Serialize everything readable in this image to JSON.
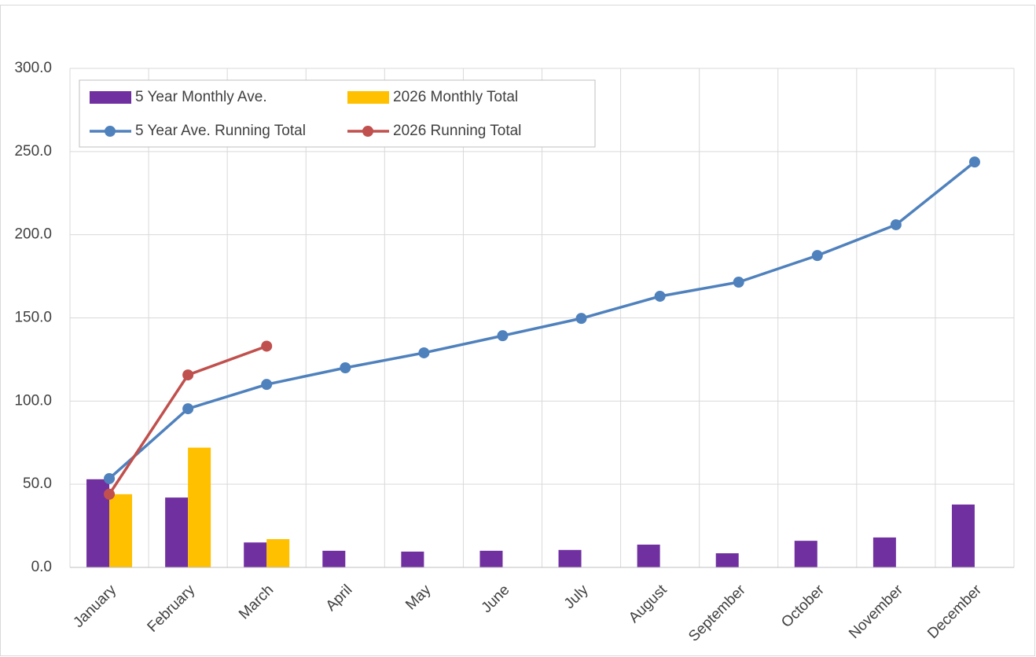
{
  "chart_data": {
    "type": "combo",
    "categories": [
      "January",
      "February",
      "March",
      "April",
      "May",
      "June",
      "July",
      "August",
      "September",
      "October",
      "November",
      "December"
    ],
    "series": [
      {
        "name": "5 Year Monthly Ave.",
        "kind": "bar",
        "color": "#7030a0",
        "values": [
          53,
          42,
          15,
          10,
          9.5,
          10,
          10.5,
          13.7,
          8.5,
          16,
          18,
          37.8
        ]
      },
      {
        "name": "2026 Monthly Total",
        "kind": "bar",
        "color": "#ffc000",
        "values": [
          44,
          72,
          17,
          null,
          null,
          null,
          null,
          null,
          null,
          null,
          null,
          null
        ]
      },
      {
        "name": "5 Year Ave. Running Total",
        "kind": "line",
        "color": "#4f81bd",
        "values": [
          53.4,
          95.4,
          110,
          120,
          129,
          139.3,
          149.7,
          163,
          171.5,
          187.5,
          206,
          243.7
        ]
      },
      {
        "name": "2026 Running Total",
        "kind": "line",
        "color": "#c0504d",
        "values": [
          44,
          115.7,
          133,
          null,
          null,
          null,
          null,
          null,
          null,
          null,
          null,
          null
        ]
      }
    ],
    "ylim": [
      0,
      300
    ],
    "yticks": [
      {
        "value": 0,
        "label": "0.0"
      },
      {
        "value": 50,
        "label": "50.0"
      },
      {
        "value": 100,
        "label": "100.0"
      },
      {
        "value": 150,
        "label": "150.0"
      },
      {
        "value": 200,
        "label": "200.0"
      },
      {
        "value": 250,
        "label": "250.0"
      },
      {
        "value": 300,
        "label": "300.0"
      }
    ],
    "grid": true
  }
}
